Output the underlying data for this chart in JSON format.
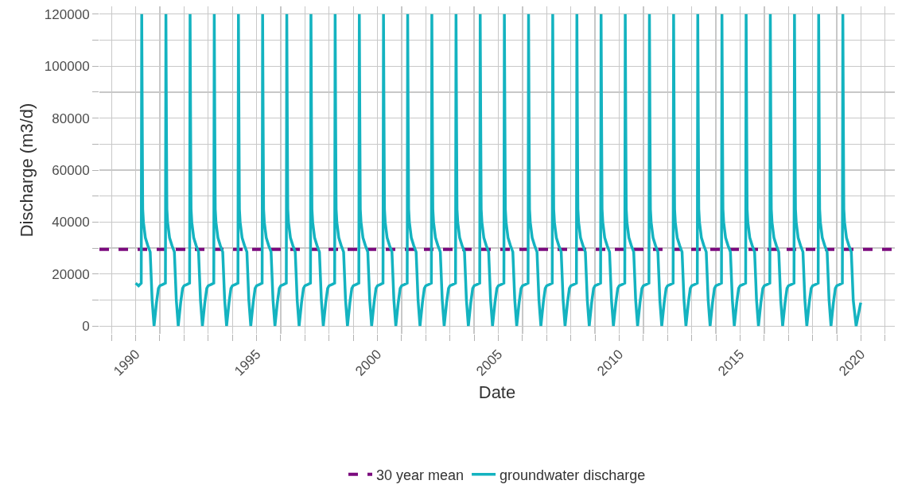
{
  "chart_data": {
    "type": "line",
    "xlabel": "Date",
    "ylabel": "Discharge (m3/d)",
    "xlim": [
      1988.5,
      2021.4
    ],
    "xticks": [
      {
        "value": 1989,
        "label": null
      },
      1990,
      {
        "value": 1991,
        "label": null
      },
      {
        "value": 1992,
        "label": null
      },
      {
        "value": 1993,
        "label": null
      },
      {
        "value": 1994,
        "label": null
      },
      1995,
      {
        "value": 1996,
        "label": null
      },
      {
        "value": 1997,
        "label": null
      },
      {
        "value": 1998,
        "label": null
      },
      {
        "value": 1999,
        "label": null
      },
      2000,
      {
        "value": 2001,
        "label": null
      },
      {
        "value": 2002,
        "label": null
      },
      {
        "value": 2003,
        "label": null
      },
      {
        "value": 2004,
        "label": null
      },
      2005,
      {
        "value": 2006,
        "label": null
      },
      {
        "value": 2007,
        "label": null
      },
      {
        "value": 2008,
        "label": null
      },
      {
        "value": 2009,
        "label": null
      },
      2010,
      {
        "value": 2011,
        "label": null
      },
      {
        "value": 2012,
        "label": null
      },
      {
        "value": 2013,
        "label": null
      },
      {
        "value": 2014,
        "label": null
      },
      2015,
      {
        "value": 2016,
        "label": null
      },
      {
        "value": 2017,
        "label": null
      },
      {
        "value": 2018,
        "label": null
      },
      {
        "value": 2019,
        "label": null
      },
      2020,
      {
        "value": 2021,
        "label": null
      }
    ],
    "ylim": [
      -3000,
      123000
    ],
    "yticks": [
      0,
      {
        "value": 10000,
        "label": null
      },
      20000,
      {
        "value": 30000,
        "label": null
      },
      40000,
      {
        "value": 50000,
        "label": null
      },
      60000,
      {
        "value": 70000,
        "label": null
      },
      80000,
      {
        "value": 90000,
        "label": null
      },
      100000,
      {
        "value": 110000,
        "label": null
      },
      120000
    ],
    "grid": true,
    "legend": "bottom",
    "line_style": "solid",
    "marker": "none",
    "ref_lines": [
      {
        "axis": "y",
        "value": 29500,
        "label": "30 year mean",
        "color": "#7b0a7e",
        "line_style": "dashed"
      }
    ],
    "series": [
      {
        "name": "groundwater discharge",
        "color": "#14b3c0",
        "x": [
          1990.0,
          1990.12,
          1990.23,
          1990.25,
          1990.27,
          1990.29,
          1990.32,
          1990.4,
          1990.5,
          1990.6,
          1990.68,
          1990.76,
          1990.86,
          1990.94,
          1991.0,
          1991.12,
          1991.23,
          1991.25,
          1991.27,
          1991.29,
          1991.32,
          1991.4,
          1991.5,
          1991.6,
          1991.68,
          1991.76,
          1991.86,
          1991.94,
          1992.0,
          1992.12,
          1992.23,
          1992.25,
          1992.27,
          1992.29,
          1992.32,
          1992.4,
          1992.5,
          1992.6,
          1992.68,
          1992.76,
          1992.86,
          1992.94,
          1993.0,
          1993.12,
          1993.23,
          1993.25,
          1993.27,
          1993.29,
          1993.32,
          1993.4,
          1993.5,
          1993.6,
          1993.68,
          1993.76,
          1993.86,
          1993.94,
          1994.0,
          1994.12,
          1994.23,
          1994.25,
          1994.27,
          1994.29,
          1994.32,
          1994.4,
          1994.5,
          1994.6,
          1994.68,
          1994.76,
          1994.86,
          1994.94,
          1995.0,
          1995.12,
          1995.23,
          1995.25,
          1995.27,
          1995.29,
          1995.32,
          1995.4,
          1995.5,
          1995.6,
          1995.68,
          1995.76,
          1995.86,
          1995.94,
          1996.0,
          1996.12,
          1996.23,
          1996.25,
          1996.27,
          1996.29,
          1996.32,
          1996.4,
          1996.5,
          1996.6,
          1996.68,
          1996.76,
          1996.86,
          1996.94,
          1997.0,
          1997.12,
          1997.23,
          1997.25,
          1997.27,
          1997.29,
          1997.32,
          1997.4,
          1997.5,
          1997.6,
          1997.68,
          1997.76,
          1997.86,
          1997.94,
          1998.0,
          1998.12,
          1998.23,
          1998.25,
          1998.27,
          1998.29,
          1998.32,
          1998.4,
          1998.5,
          1998.6,
          1998.68,
          1998.76,
          1998.86,
          1998.94,
          1999.0,
          1999.12,
          1999.23,
          1999.25,
          1999.27,
          1999.29,
          1999.32,
          1999.4,
          1999.5,
          1999.6,
          1999.68,
          1999.76,
          1999.86,
          1999.94,
          2000.0,
          2000.12,
          2000.23,
          2000.25,
          2000.27,
          2000.29,
          2000.32,
          2000.4,
          2000.5,
          2000.6,
          2000.68,
          2000.76,
          2000.86,
          2000.94,
          2001.0,
          2001.12,
          2001.23,
          2001.25,
          2001.27,
          2001.29,
          2001.32,
          2001.4,
          2001.5,
          2001.6,
          2001.68,
          2001.76,
          2001.86,
          2001.94,
          2002.0,
          2002.12,
          2002.23,
          2002.25,
          2002.27,
          2002.29,
          2002.32,
          2002.4,
          2002.5,
          2002.6,
          2002.68,
          2002.76,
          2002.86,
          2002.94,
          2003.0,
          2003.12,
          2003.23,
          2003.25,
          2003.27,
          2003.29,
          2003.32,
          2003.4,
          2003.5,
          2003.6,
          2003.68,
          2003.76,
          2003.86,
          2003.94,
          2004.0,
          2004.12,
          2004.23,
          2004.25,
          2004.27,
          2004.29,
          2004.32,
          2004.4,
          2004.5,
          2004.6,
          2004.68,
          2004.76,
          2004.86,
          2004.94,
          2005.0,
          2005.12,
          2005.23,
          2005.25,
          2005.27,
          2005.29,
          2005.32,
          2005.4,
          2005.5,
          2005.6,
          2005.68,
          2005.76,
          2005.86,
          2005.94,
          2006.0,
          2006.12,
          2006.23,
          2006.25,
          2006.27,
          2006.29,
          2006.32,
          2006.4,
          2006.5,
          2006.6,
          2006.68,
          2006.76,
          2006.86,
          2006.94,
          2007.0,
          2007.12,
          2007.23,
          2007.25,
          2007.27,
          2007.29,
          2007.32,
          2007.4,
          2007.5,
          2007.6,
          2007.68,
          2007.76,
          2007.86,
          2007.94,
          2008.0,
          2008.12,
          2008.23,
          2008.25,
          2008.27,
          2008.29,
          2008.32,
          2008.4,
          2008.5,
          2008.6,
          2008.68,
          2008.76,
          2008.86,
          2008.94,
          2009.0,
          2009.12,
          2009.23,
          2009.25,
          2009.27,
          2009.29,
          2009.32,
          2009.4,
          2009.5,
          2009.6,
          2009.68,
          2009.76,
          2009.86,
          2009.94,
          2010.0,
          2010.12,
          2010.23,
          2010.25,
          2010.27,
          2010.29,
          2010.32,
          2010.4,
          2010.5,
          2010.6,
          2010.68,
          2010.76,
          2010.86,
          2010.94,
          2011.0,
          2011.12,
          2011.23,
          2011.25,
          2011.27,
          2011.29,
          2011.32,
          2011.4,
          2011.5,
          2011.6,
          2011.68,
          2011.76,
          2011.86,
          2011.94,
          2012.0,
          2012.12,
          2012.23,
          2012.25,
          2012.27,
          2012.29,
          2012.32,
          2012.4,
          2012.5,
          2012.6,
          2012.68,
          2012.76,
          2012.86,
          2012.94,
          2013.0,
          2013.12,
          2013.23,
          2013.25,
          2013.27,
          2013.29,
          2013.32,
          2013.4,
          2013.5,
          2013.6,
          2013.68,
          2013.76,
          2013.86,
          2013.94,
          2014.0,
          2014.12,
          2014.23,
          2014.25,
          2014.27,
          2014.29,
          2014.32,
          2014.4,
          2014.5,
          2014.6,
          2014.68,
          2014.76,
          2014.86,
          2014.94,
          2015.0,
          2015.12,
          2015.23,
          2015.25,
          2015.27,
          2015.29,
          2015.32,
          2015.4,
          2015.5,
          2015.6,
          2015.68,
          2015.76,
          2015.86,
          2015.94,
          2016.0,
          2016.12,
          2016.23,
          2016.25,
          2016.27,
          2016.29,
          2016.32,
          2016.4,
          2016.5,
          2016.6,
          2016.68,
          2016.76,
          2016.86,
          2016.94,
          2017.0,
          2017.12,
          2017.23,
          2017.25,
          2017.27,
          2017.29,
          2017.32,
          2017.4,
          2017.5,
          2017.6,
          2017.68,
          2017.76,
          2017.86,
          2017.94,
          2018.0,
          2018.12,
          2018.23,
          2018.25,
          2018.27,
          2018.29,
          2018.32,
          2018.4,
          2018.5,
          2018.6,
          2018.68,
          2018.76,
          2018.86,
          2018.94,
          2019.0,
          2019.12,
          2019.23,
          2019.25,
          2019.27,
          2019.29,
          2019.32,
          2019.4,
          2019.5,
          2019.6,
          2019.68,
          2019.8,
          2019.99
        ],
        "values": [
          16500,
          15500,
          16500,
          120000,
          80000,
          45000,
          40000,
          34000,
          31000,
          28500,
          10000,
          0,
          9000,
          14500,
          15500,
          16000,
          16500,
          120000,
          80000,
          45000,
          40000,
          34000,
          31000,
          28500,
          10000,
          0,
          9000,
          14500,
          15500,
          16000,
          16500,
          120000,
          80000,
          45000,
          40000,
          34000,
          31000,
          28500,
          10000,
          0,
          9000,
          14500,
          15500,
          16000,
          16500,
          120000,
          80000,
          45000,
          40000,
          34000,
          31000,
          28500,
          10000,
          0,
          9000,
          14500,
          15500,
          16000,
          16500,
          120000,
          80000,
          45000,
          40000,
          34000,
          31000,
          28500,
          10000,
          0,
          9000,
          14500,
          15500,
          16000,
          16500,
          120000,
          80000,
          45000,
          40000,
          34000,
          31000,
          28500,
          10000,
          0,
          9000,
          14500,
          15500,
          16000,
          16500,
          120000,
          80000,
          45000,
          40000,
          34000,
          31000,
          28500,
          10000,
          0,
          9000,
          14500,
          15500,
          16000,
          16500,
          120000,
          80000,
          45000,
          40000,
          34000,
          31000,
          28500,
          10000,
          0,
          9000,
          14500,
          15500,
          16000,
          16500,
          120000,
          80000,
          45000,
          40000,
          34000,
          31000,
          28500,
          10000,
          0,
          9000,
          14500,
          15500,
          16000,
          16500,
          120000,
          80000,
          45000,
          40000,
          34000,
          31000,
          28500,
          10000,
          0,
          9000,
          14500,
          15500,
          16000,
          16500,
          120000,
          80000,
          45000,
          40000,
          34000,
          31000,
          28500,
          10000,
          0,
          9000,
          14500,
          15500,
          16000,
          16500,
          120000,
          80000,
          45000,
          40000,
          34000,
          31000,
          28500,
          10000,
          0,
          9000,
          14500,
          15500,
          16000,
          16500,
          120000,
          80000,
          45000,
          40000,
          34000,
          31000,
          28500,
          10000,
          0,
          9000,
          14500,
          15500,
          16000,
          16500,
          120000,
          80000,
          45000,
          40000,
          34000,
          31000,
          28500,
          10000,
          0,
          9000,
          14500,
          15500,
          16000,
          16500,
          120000,
          80000,
          45000,
          40000,
          34000,
          31000,
          28500,
          10000,
          0,
          9000,
          14500,
          15500,
          16000,
          16500,
          120000,
          80000,
          45000,
          40000,
          34000,
          31000,
          28500,
          10000,
          0,
          9000,
          14500,
          15500,
          16000,
          16500,
          120000,
          80000,
          45000,
          40000,
          34000,
          31000,
          28500,
          10000,
          0,
          9000,
          14500,
          15500,
          16000,
          16500,
          120000,
          80000,
          45000,
          40000,
          34000,
          31000,
          28500,
          10000,
          0,
          9000,
          14500,
          15500,
          16000,
          16500,
          120000,
          80000,
          45000,
          40000,
          34000,
          31000,
          28500,
          10000,
          0,
          9000,
          14500,
          15500,
          16000,
          16500,
          120000,
          80000,
          45000,
          40000,
          34000,
          31000,
          28500,
          10000,
          0,
          9000,
          14500,
          15500,
          16000,
          16500,
          120000,
          80000,
          45000,
          40000,
          34000,
          31000,
          28500,
          10000,
          0,
          9000,
          14500,
          15500,
          16000,
          16500,
          120000,
          80000,
          45000,
          40000,
          34000,
          31000,
          28500,
          10000,
          0,
          9000,
          14500,
          15500,
          16000,
          16500,
          120000,
          80000,
          45000,
          40000,
          34000,
          31000,
          28500,
          10000,
          0,
          9000,
          14500,
          15500,
          16000,
          16500,
          120000,
          80000,
          45000,
          40000,
          34000,
          31000,
          28500,
          10000,
          0,
          9000,
          14500,
          15500,
          16000,
          16500,
          120000,
          80000,
          45000,
          40000,
          34000,
          31000,
          28500,
          10000,
          0,
          9000,
          14500,
          15500,
          16000,
          16500,
          120000,
          80000,
          45000,
          40000,
          34000,
          31000,
          28500,
          10000,
          0,
          9000,
          14500,
          15500,
          16000,
          16500,
          120000,
          80000,
          45000,
          40000,
          34000,
          31000,
          28500,
          10000,
          0,
          9000,
          14500,
          15500,
          16000,
          16500,
          120000,
          80000,
          45000,
          40000,
          34000,
          31000,
          28500,
          10000,
          0,
          9000,
          14500,
          15500,
          16000,
          16500,
          120000,
          80000,
          45000,
          40000,
          34000,
          31000,
          28500,
          10000,
          0,
          9000,
          14500,
          15500,
          16000,
          16500,
          120000,
          80000,
          45000,
          40000,
          34000,
          31000,
          28500,
          10000,
          0,
          9000
        ]
      }
    ]
  }
}
